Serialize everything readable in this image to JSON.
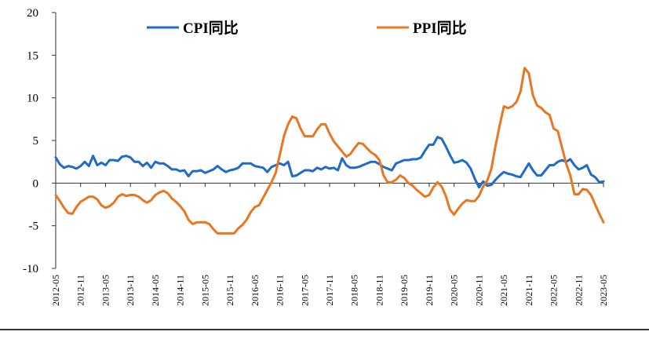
{
  "chart_data": {
    "type": "line",
    "title": "",
    "xlabel": "",
    "ylabel": "",
    "ylim": [
      -10,
      20
    ],
    "yticks": [
      20,
      15,
      10,
      5,
      0,
      -5,
      -10
    ],
    "xlim": [
      "2012-05",
      "2023-05"
    ],
    "xtick_labels": [
      "2012-05",
      "2012-11",
      "2013-05",
      "2013-11",
      "2014-05",
      "2014-11",
      "2015-05",
      "2015-11",
      "2016-05",
      "2016-11",
      "2017-05",
      "2017-11",
      "2018-05",
      "2018-11",
      "2019-05",
      "2019-11",
      "2020-05",
      "2020-11",
      "2021-05",
      "2021-11",
      "2022-05",
      "2022-11",
      "2023-05"
    ],
    "grid": false,
    "legend": "top",
    "colors": {
      "CPI同比": "#1f6bc9",
      "PPI同比": "#e87722"
    },
    "series": [
      {
        "name": "CPI同比",
        "color": "#1f6bc9",
        "points": [
          [
            "2012-05",
            3.0
          ],
          [
            "2012-06",
            2.2
          ],
          [
            "2012-07",
            1.8
          ],
          [
            "2012-08",
            2.0
          ],
          [
            "2012-09",
            1.9
          ],
          [
            "2012-10",
            1.7
          ],
          [
            "2012-11",
            2.0
          ],
          [
            "2012-12",
            2.5
          ],
          [
            "2013-01",
            2.0
          ],
          [
            "2013-02",
            3.2
          ],
          [
            "2013-03",
            2.1
          ],
          [
            "2013-04",
            2.4
          ],
          [
            "2013-05",
            2.1
          ],
          [
            "2013-06",
            2.7
          ],
          [
            "2013-07",
            2.7
          ],
          [
            "2013-08",
            2.6
          ],
          [
            "2013-09",
            3.1
          ],
          [
            "2013-10",
            3.2
          ],
          [
            "2013-11",
            3.0
          ],
          [
            "2013-12",
            2.5
          ],
          [
            "2014-01",
            2.5
          ],
          [
            "2014-02",
            2.0
          ],
          [
            "2014-03",
            2.4
          ],
          [
            "2014-04",
            1.8
          ],
          [
            "2014-05",
            2.5
          ],
          [
            "2014-06",
            2.3
          ],
          [
            "2014-07",
            2.3
          ],
          [
            "2014-08",
            2.0
          ],
          [
            "2014-09",
            1.6
          ],
          [
            "2014-10",
            1.6
          ],
          [
            "2014-11",
            1.4
          ],
          [
            "2014-12",
            1.5
          ],
          [
            "2015-01",
            0.8
          ],
          [
            "2015-02",
            1.4
          ],
          [
            "2015-03",
            1.4
          ],
          [
            "2015-04",
            1.5
          ],
          [
            "2015-05",
            1.2
          ],
          [
            "2015-06",
            1.4
          ],
          [
            "2015-07",
            1.6
          ],
          [
            "2015-08",
            2.0
          ],
          [
            "2015-09",
            1.6
          ],
          [
            "2015-10",
            1.3
          ],
          [
            "2015-11",
            1.5
          ],
          [
            "2015-12",
            1.6
          ],
          [
            "2016-01",
            1.8
          ],
          [
            "2016-02",
            2.3
          ],
          [
            "2016-03",
            2.3
          ],
          [
            "2016-04",
            2.3
          ],
          [
            "2016-05",
            2.0
          ],
          [
            "2016-06",
            1.9
          ],
          [
            "2016-07",
            1.8
          ],
          [
            "2016-08",
            1.3
          ],
          [
            "2016-09",
            1.9
          ],
          [
            "2016-10",
            2.1
          ],
          [
            "2016-11",
            2.3
          ],
          [
            "2016-12",
            2.1
          ],
          [
            "2017-01",
            2.5
          ],
          [
            "2017-02",
            0.8
          ],
          [
            "2017-03",
            0.9
          ],
          [
            "2017-04",
            1.2
          ],
          [
            "2017-05",
            1.5
          ],
          [
            "2017-06",
            1.5
          ],
          [
            "2017-07",
            1.4
          ],
          [
            "2017-08",
            1.8
          ],
          [
            "2017-09",
            1.6
          ],
          [
            "2017-10",
            1.9
          ],
          [
            "2017-11",
            1.7
          ],
          [
            "2017-12",
            1.8
          ],
          [
            "2018-01",
            1.5
          ],
          [
            "2018-02",
            2.9
          ],
          [
            "2018-03",
            2.1
          ],
          [
            "2018-04",
            1.8
          ],
          [
            "2018-05",
            1.8
          ],
          [
            "2018-06",
            1.9
          ],
          [
            "2018-07",
            2.1
          ],
          [
            "2018-08",
            2.3
          ],
          [
            "2018-09",
            2.5
          ],
          [
            "2018-10",
            2.5
          ],
          [
            "2018-11",
            2.2
          ],
          [
            "2018-12",
            1.9
          ],
          [
            "2019-01",
            1.7
          ],
          [
            "2019-02",
            1.5
          ],
          [
            "2019-03",
            2.3
          ],
          [
            "2019-04",
            2.5
          ],
          [
            "2019-05",
            2.7
          ],
          [
            "2019-06",
            2.7
          ],
          [
            "2019-07",
            2.8
          ],
          [
            "2019-08",
            2.8
          ],
          [
            "2019-09",
            3.0
          ],
          [
            "2019-10",
            3.8
          ],
          [
            "2019-11",
            4.5
          ],
          [
            "2019-12",
            4.5
          ],
          [
            "2020-01",
            5.4
          ],
          [
            "2020-02",
            5.2
          ],
          [
            "2020-03",
            4.3
          ],
          [
            "2020-04",
            3.3
          ],
          [
            "2020-05",
            2.4
          ],
          [
            "2020-06",
            2.5
          ],
          [
            "2020-07",
            2.7
          ],
          [
            "2020-08",
            2.4
          ],
          [
            "2020-09",
            1.7
          ],
          [
            "2020-10",
            0.5
          ],
          [
            "2020-11",
            -0.5
          ],
          [
            "2020-12",
            0.2
          ],
          [
            "2021-01",
            -0.3
          ],
          [
            "2021-02",
            -0.2
          ],
          [
            "2021-03",
            0.4
          ],
          [
            "2021-04",
            0.9
          ],
          [
            "2021-05",
            1.3
          ],
          [
            "2021-06",
            1.1
          ],
          [
            "2021-07",
            1.0
          ],
          [
            "2021-08",
            0.8
          ],
          [
            "2021-09",
            0.7
          ],
          [
            "2021-10",
            1.5
          ],
          [
            "2021-11",
            2.3
          ],
          [
            "2021-12",
            1.5
          ],
          [
            "2022-01",
            0.9
          ],
          [
            "2022-02",
            0.9
          ],
          [
            "2022-03",
            1.5
          ],
          [
            "2022-04",
            2.1
          ],
          [
            "2022-05",
            2.1
          ],
          [
            "2022-06",
            2.5
          ],
          [
            "2022-07",
            2.7
          ],
          [
            "2022-08",
            2.5
          ],
          [
            "2022-09",
            2.8
          ],
          [
            "2022-10",
            2.1
          ],
          [
            "2022-11",
            1.6
          ],
          [
            "2022-12",
            1.8
          ],
          [
            "2023-01",
            2.1
          ],
          [
            "2023-02",
            1.0
          ],
          [
            "2023-03",
            0.7
          ],
          [
            "2023-04",
            0.1
          ],
          [
            "2023-05",
            0.2
          ]
        ]
      },
      {
        "name": "PPI同比",
        "color": "#e87722",
        "points": [
          [
            "2012-05",
            -1.4
          ],
          [
            "2012-06",
            -2.1
          ],
          [
            "2012-07",
            -2.9
          ],
          [
            "2012-08",
            -3.5
          ],
          [
            "2012-09",
            -3.6
          ],
          [
            "2012-10",
            -2.8
          ],
          [
            "2012-11",
            -2.2
          ],
          [
            "2012-12",
            -1.9
          ],
          [
            "2013-01",
            -1.6
          ],
          [
            "2013-02",
            -1.6
          ],
          [
            "2013-03",
            -1.9
          ],
          [
            "2013-04",
            -2.6
          ],
          [
            "2013-05",
            -2.9
          ],
          [
            "2013-06",
            -2.7
          ],
          [
            "2013-07",
            -2.3
          ],
          [
            "2013-08",
            -1.6
          ],
          [
            "2013-09",
            -1.3
          ],
          [
            "2013-10",
            -1.5
          ],
          [
            "2013-11",
            -1.4
          ],
          [
            "2013-12",
            -1.4
          ],
          [
            "2014-01",
            -1.6
          ],
          [
            "2014-02",
            -2.0
          ],
          [
            "2014-03",
            -2.3
          ],
          [
            "2014-04",
            -2.0
          ],
          [
            "2014-05",
            -1.4
          ],
          [
            "2014-06",
            -1.1
          ],
          [
            "2014-07",
            -0.9
          ],
          [
            "2014-08",
            -1.2
          ],
          [
            "2014-09",
            -1.8
          ],
          [
            "2014-10",
            -2.2
          ],
          [
            "2014-11",
            -2.7
          ],
          [
            "2014-12",
            -3.3
          ],
          [
            "2015-01",
            -4.3
          ],
          [
            "2015-02",
            -4.8
          ],
          [
            "2015-03",
            -4.6
          ],
          [
            "2015-04",
            -4.6
          ],
          [
            "2015-05",
            -4.6
          ],
          [
            "2015-06",
            -4.8
          ],
          [
            "2015-07",
            -5.4
          ],
          [
            "2015-08",
            -5.9
          ],
          [
            "2015-09",
            -5.9
          ],
          [
            "2015-10",
            -5.9
          ],
          [
            "2015-11",
            -5.9
          ],
          [
            "2015-12",
            -5.9
          ],
          [
            "2016-01",
            -5.3
          ],
          [
            "2016-02",
            -4.9
          ],
          [
            "2016-03",
            -4.3
          ],
          [
            "2016-04",
            -3.4
          ],
          [
            "2016-05",
            -2.8
          ],
          [
            "2016-06",
            -2.6
          ],
          [
            "2016-07",
            -1.7
          ],
          [
            "2016-08",
            -0.8
          ],
          [
            "2016-09",
            0.1
          ],
          [
            "2016-10",
            1.2
          ],
          [
            "2016-11",
            3.3
          ],
          [
            "2016-12",
            5.5
          ],
          [
            "2017-01",
            6.9
          ],
          [
            "2017-02",
            7.8
          ],
          [
            "2017-03",
            7.6
          ],
          [
            "2017-04",
            6.4
          ],
          [
            "2017-05",
            5.5
          ],
          [
            "2017-06",
            5.5
          ],
          [
            "2017-07",
            5.5
          ],
          [
            "2017-08",
            6.3
          ],
          [
            "2017-09",
            6.9
          ],
          [
            "2017-10",
            6.9
          ],
          [
            "2017-11",
            5.8
          ],
          [
            "2017-12",
            4.9
          ],
          [
            "2018-01",
            4.3
          ],
          [
            "2018-02",
            3.7
          ],
          [
            "2018-03",
            3.1
          ],
          [
            "2018-04",
            3.4
          ],
          [
            "2018-05",
            4.1
          ],
          [
            "2018-06",
            4.7
          ],
          [
            "2018-07",
            4.6
          ],
          [
            "2018-08",
            4.1
          ],
          [
            "2018-09",
            3.6
          ],
          [
            "2018-10",
            3.3
          ],
          [
            "2018-11",
            2.7
          ],
          [
            "2018-12",
            0.9
          ],
          [
            "2019-01",
            0.1
          ],
          [
            "2019-02",
            0.1
          ],
          [
            "2019-03",
            0.4
          ],
          [
            "2019-04",
            0.9
          ],
          [
            "2019-05",
            0.6
          ],
          [
            "2019-06",
            0.0
          ],
          [
            "2019-07",
            -0.3
          ],
          [
            "2019-08",
            -0.8
          ],
          [
            "2019-09",
            -1.2
          ],
          [
            "2019-10",
            -1.6
          ],
          [
            "2019-11",
            -1.4
          ],
          [
            "2019-12",
            -0.5
          ],
          [
            "2020-01",
            0.1
          ],
          [
            "2020-02",
            -0.4
          ],
          [
            "2020-03",
            -1.5
          ],
          [
            "2020-04",
            -3.1
          ],
          [
            "2020-05",
            -3.7
          ],
          [
            "2020-06",
            -3.0
          ],
          [
            "2020-07",
            -2.4
          ],
          [
            "2020-08",
            -2.0
          ],
          [
            "2020-09",
            -2.1
          ],
          [
            "2020-10",
            -2.1
          ],
          [
            "2020-11",
            -1.5
          ],
          [
            "2020-12",
            -0.4
          ],
          [
            "2021-01",
            0.3
          ],
          [
            "2021-02",
            1.7
          ],
          [
            "2021-03",
            4.4
          ],
          [
            "2021-04",
            6.8
          ],
          [
            "2021-05",
            9.0
          ],
          [
            "2021-06",
            8.8
          ],
          [
            "2021-07",
            9.0
          ],
          [
            "2021-08",
            9.5
          ],
          [
            "2021-09",
            10.7
          ],
          [
            "2021-10",
            13.5
          ],
          [
            "2021-11",
            12.9
          ],
          [
            "2021-12",
            10.3
          ],
          [
            "2022-01",
            9.1
          ],
          [
            "2022-02",
            8.8
          ],
          [
            "2022-03",
            8.3
          ],
          [
            "2022-04",
            8.0
          ],
          [
            "2022-05",
            6.4
          ],
          [
            "2022-06",
            6.1
          ],
          [
            "2022-07",
            4.2
          ],
          [
            "2022-08",
            2.3
          ],
          [
            "2022-09",
            0.9
          ],
          [
            "2022-10",
            -1.3
          ],
          [
            "2022-11",
            -1.3
          ],
          [
            "2022-12",
            -0.7
          ],
          [
            "2023-01",
            -0.8
          ],
          [
            "2023-02",
            -1.4
          ],
          [
            "2023-03",
            -2.5
          ],
          [
            "2023-04",
            -3.6
          ],
          [
            "2023-05",
            -4.6
          ]
        ]
      }
    ]
  }
}
